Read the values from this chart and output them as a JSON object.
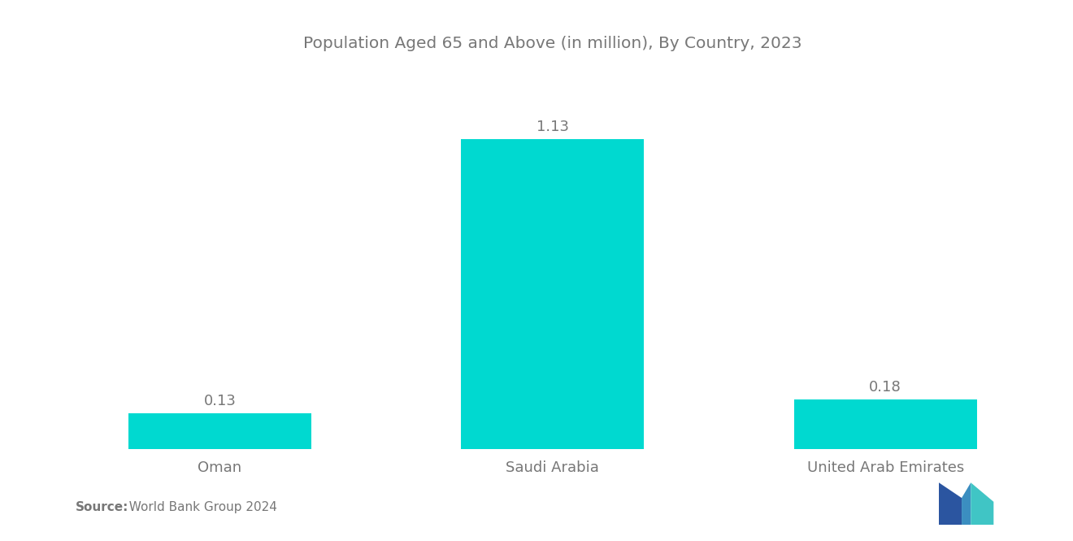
{
  "title": "Population Aged 65 and Above (in million), By Country, 2023",
  "categories": [
    "Oman",
    "Saudi Arabia",
    "United Arab Emirates"
  ],
  "values": [
    0.13,
    1.13,
    0.18
  ],
  "bar_color": "#00D9D0",
  "background_color": "#ffffff",
  "title_fontsize": 14.5,
  "label_fontsize": 13,
  "value_fontsize": 13,
  "source_bold": "Source:",
  "source_normal": "  World Bank Group 2024",
  "ylim": [
    0,
    1.4
  ],
  "bar_width": 0.55,
  "text_color": "#777777"
}
